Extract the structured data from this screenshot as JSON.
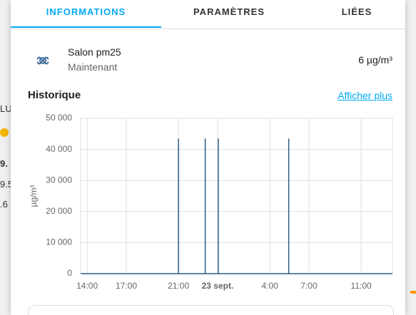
{
  "background": {
    "texts": [
      "LU",
      "9.",
      "9.5",
      ".6"
    ]
  },
  "tabs": [
    "INFORMATIONS",
    "PARAMÈTRES",
    "LIÉES"
  ],
  "entity": {
    "name": "Salon pm25",
    "time": "Maintenant",
    "state": "6 µg/m³"
  },
  "history": {
    "title": "Historique",
    "link": "Afficher plus"
  },
  "chart_data": {
    "type": "line",
    "y_label": "µg/m³",
    "color": "#2e5b85",
    "grid": true,
    "x": [
      13.5,
      21,
      21,
      21,
      23.05,
      23.05,
      23.05,
      24.05,
      24.05,
      24.05,
      29.45,
      29.45,
      29.45,
      37.4
    ],
    "values": [
      0,
      0,
      43500,
      0,
      0,
      43500,
      0,
      0,
      43500,
      0,
      0,
      43500,
      0,
      0
    ],
    "xlim": [
      13.5,
      37.4
    ],
    "xticks": [
      {
        "value": 14,
        "label": "14:00"
      },
      {
        "value": 17,
        "label": "17:00"
      },
      {
        "value": 21,
        "label": "21:00"
      },
      {
        "value": 24,
        "label": "23 sept."
      },
      {
        "value": 28,
        "label": "4:00"
      },
      {
        "value": 31,
        "label": "7:00"
      },
      {
        "value": 35,
        "label": "11:00"
      }
    ],
    "ylim": [
      0,
      50000
    ],
    "yticks": [
      0,
      {
        "value": 10000,
        "label": "10 000"
      },
      {
        "value": 20000,
        "label": "20 000"
      },
      {
        "value": 30000,
        "label": "30 000"
      },
      {
        "value": 40000,
        "label": "40 000"
      },
      {
        "value": 50000,
        "label": "50 000"
      }
    ]
  }
}
